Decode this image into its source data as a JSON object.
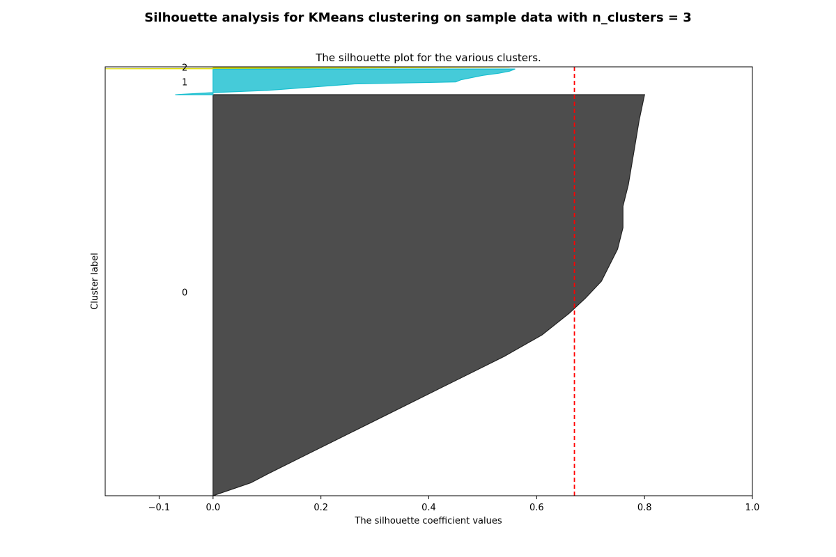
{
  "figure": {
    "suptitle": "Silhouette analysis for KMeans clustering on sample data with n_clusters = 3"
  },
  "chart_data": {
    "type": "area",
    "title": "The silhouette plot for the various clusters.",
    "xlabel": "The silhouette coefficient values",
    "ylabel": "Cluster label",
    "xlim": [
      -0.2,
      1.0
    ],
    "ylim": [
      0,
      200
    ],
    "x_ticks": [
      -0.1,
      0.0,
      0.2,
      0.4,
      0.6,
      0.8,
      1.0
    ],
    "x_tick_labels": [
      "−0.1",
      "0.0",
      "0.2",
      "0.4",
      "0.6",
      "0.8",
      "1.0"
    ],
    "y_ticks": [],
    "grid": false,
    "average_silhouette_score": 0.67,
    "average_line_color": "#ff0000",
    "series": [
      {
        "label": "0",
        "color": "#4d4d4d",
        "edge_color": "#222222",
        "y_start": 0,
        "y_end": 187,
        "label_y": 95,
        "profile": [
          [
            0,
            0.0
          ],
          [
            6,
            0.07
          ],
          [
            10,
            0.1
          ],
          [
            20,
            0.18
          ],
          [
            30,
            0.26
          ],
          [
            40,
            0.34
          ],
          [
            50,
            0.42
          ],
          [
            55,
            0.46
          ],
          [
            65,
            0.54
          ],
          [
            75,
            0.61
          ],
          [
            85,
            0.66
          ],
          [
            92,
            0.69
          ],
          [
            100,
            0.72
          ],
          [
            115,
            0.75
          ],
          [
            125,
            0.76
          ],
          [
            135,
            0.76
          ],
          [
            145,
            0.77
          ],
          [
            160,
            0.78
          ],
          [
            175,
            0.79
          ],
          [
            187,
            0.8
          ]
        ]
      },
      {
        "label": "1",
        "color": "#17becf",
        "edge_color": "#17becf",
        "alpha": 0.8,
        "y_start": 187,
        "y_end": 199,
        "label_y": 193,
        "profile": [
          [
            187,
            -0.07
          ],
          [
            188,
            0.0
          ],
          [
            189,
            0.1
          ],
          [
            192,
            0.26
          ],
          [
            193,
            0.45
          ],
          [
            194,
            0.46
          ],
          [
            196,
            0.5
          ],
          [
            197,
            0.53
          ],
          [
            198,
            0.55
          ],
          [
            199,
            0.56
          ]
        ]
      },
      {
        "label": "2",
        "color": "#bcbd22",
        "edge_color": "#dddd00",
        "y_start": 199,
        "y_end": 200,
        "label_y": 199.8,
        "profile": [
          [
            199.1,
            -0.2
          ],
          [
            199.5,
            0.3
          ],
          [
            199.9,
            0.55
          ]
        ]
      }
    ]
  }
}
